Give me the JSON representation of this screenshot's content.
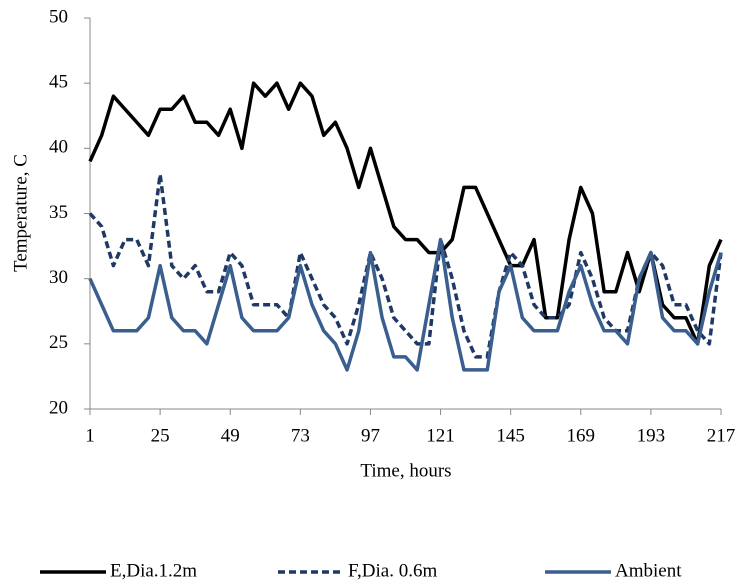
{
  "chart_data": {
    "type": "line",
    "x_label": "Time, hours",
    "y_label": "Temperature, C",
    "x": [
      1,
      5,
      9,
      13,
      17,
      21,
      25,
      29,
      33,
      37,
      41,
      45,
      49,
      53,
      57,
      61,
      65,
      69,
      73,
      77,
      81,
      85,
      89,
      93,
      97,
      101,
      105,
      109,
      113,
      117,
      121,
      125,
      129,
      133,
      137,
      141,
      145,
      149,
      153,
      157,
      161,
      165,
      169,
      173,
      177,
      181,
      185,
      189,
      193,
      197,
      201,
      205,
      209,
      213,
      217
    ],
    "xlim": [
      1,
      217
    ],
    "xticks": [
      1,
      25,
      49,
      73,
      97,
      121,
      145,
      169,
      193,
      217
    ],
    "ylim": [
      20,
      50
    ],
    "yticks": [
      20,
      25,
      30,
      35,
      40,
      45,
      50
    ],
    "legend": "bottom",
    "series": [
      {
        "name": "E,Dia.1.2m",
        "color": "#000000",
        "dash": false,
        "values": [
          39,
          41,
          44,
          43,
          42,
          41,
          43,
          43,
          44,
          42,
          42,
          41,
          43,
          40,
          45,
          44,
          45,
          43,
          45,
          44,
          41,
          42,
          40,
          37,
          40,
          37,
          34,
          33,
          33,
          32,
          32,
          33,
          37,
          37,
          35,
          33,
          31,
          31,
          33,
          27,
          27,
          33,
          37,
          35,
          29,
          29,
          32,
          29,
          32,
          28,
          27,
          27,
          25,
          31,
          33
        ]
      },
      {
        "name": "F,Dia. 0.6m",
        "color": "#1f3864",
        "dash": true,
        "values": [
          35,
          34,
          31,
          33,
          33,
          31,
          38,
          31,
          30,
          31,
          29,
          29,
          32,
          31,
          28,
          28,
          28,
          27,
          32,
          30,
          28,
          27,
          25,
          28,
          32,
          30,
          27,
          26,
          25,
          25,
          33,
          30,
          26,
          24,
          24,
          29,
          32,
          31,
          28,
          27,
          27,
          28,
          32,
          30,
          27,
          26,
          26,
          30,
          32,
          31,
          28,
          28,
          26,
          25,
          32
        ]
      },
      {
        "name": "Ambient",
        "color": "#3a5f8f",
        "dash": false,
        "values": [
          30,
          28,
          26,
          26,
          26,
          27,
          31,
          27,
          26,
          26,
          25,
          28,
          31,
          27,
          26,
          26,
          26,
          27,
          31,
          28,
          26,
          25,
          23,
          26,
          32,
          27,
          24,
          24,
          23,
          28,
          33,
          27,
          23,
          23,
          23,
          29,
          31,
          27,
          26,
          26,
          26,
          29,
          31,
          28,
          26,
          26,
          25,
          30,
          32,
          27,
          26,
          26,
          25,
          29,
          32
        ]
      }
    ]
  }
}
